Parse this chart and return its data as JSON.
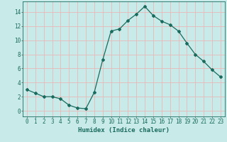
{
  "x": [
    0,
    1,
    2,
    3,
    4,
    5,
    6,
    7,
    8,
    9,
    10,
    11,
    12,
    13,
    14,
    15,
    16,
    17,
    18,
    19,
    20,
    21,
    22,
    23
  ],
  "y": [
    3.0,
    2.5,
    2.0,
    2.0,
    1.7,
    0.8,
    0.4,
    0.3,
    2.6,
    7.2,
    11.3,
    11.6,
    12.8,
    13.7,
    14.8,
    13.5,
    12.7,
    12.2,
    11.3,
    9.6,
    8.0,
    7.0,
    5.8,
    4.8
  ],
  "line_color": "#1a6b5e",
  "marker": "D",
  "marker_size": 2.0,
  "bg_color": "#c8eae8",
  "grid_color": "#e8b8b8",
  "xlabel": "Humidex (Indice chaleur)",
  "xlim": [
    -0.5,
    23.5
  ],
  "ylim": [
    -0.8,
    15.5
  ],
  "yticks": [
    0,
    2,
    4,
    6,
    8,
    10,
    12,
    14
  ],
  "xticks": [
    0,
    1,
    2,
    3,
    4,
    5,
    6,
    7,
    8,
    9,
    10,
    11,
    12,
    13,
    14,
    15,
    16,
    17,
    18,
    19,
    20,
    21,
    22,
    23
  ],
  "axis_fontsize": 5.5,
  "xlabel_fontsize": 6.5,
  "label_color": "#1a6b5e",
  "line_width": 0.9
}
